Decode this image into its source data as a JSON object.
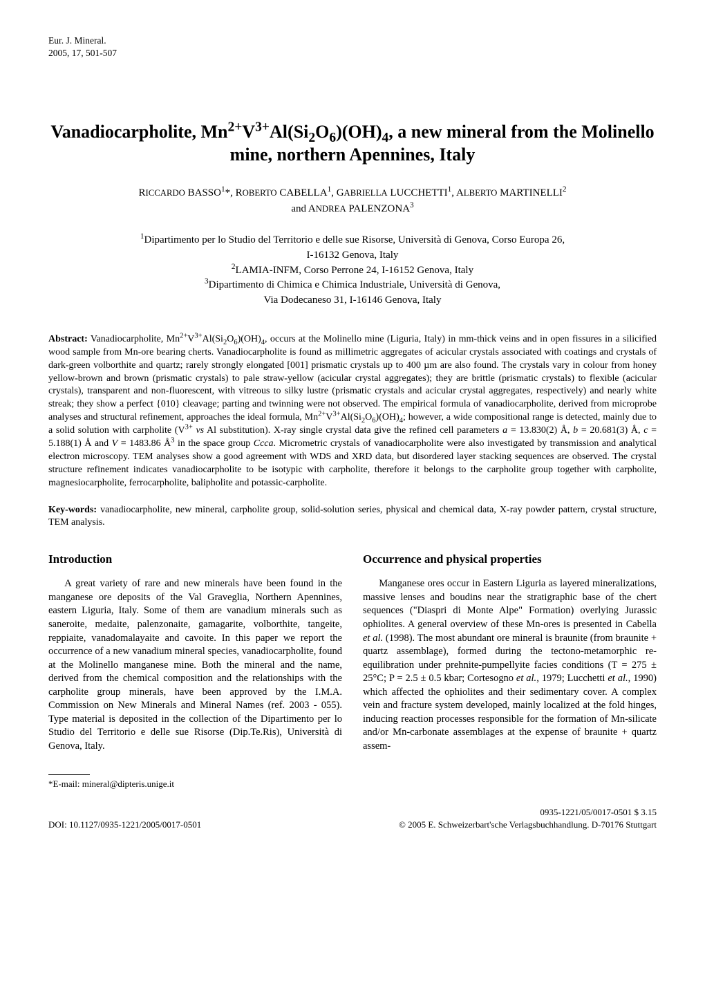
{
  "journal": {
    "name": "Eur. J. Mineral.",
    "citation": "2005, 17, 501-507"
  },
  "title_html": "Vanadiocarpholite, Mn<span class=\"sup\">2+</span>V<span class=\"sup\">3+</span>Al(Si<span class=\"sub\">2</span>O<span class=\"sub\">6</span>)(OH)<span class=\"sub\">4</span>, a new mineral from the Molinello mine, northern Apennines, Italy",
  "authors_html": "R<span style=\"font-size:0.85em\">ICCARDO</span> BASSO<span class=\"sup\">1</span>*, R<span style=\"font-size:0.85em\">OBERTO</span> CABELLA<span class=\"sup\">1</span>, G<span style=\"font-size:0.85em\">ABRIELLA</span> LUCCHETTI<span class=\"sup\">1</span>, A<span style=\"font-size:0.85em\">LBERTO</span> MARTINELLI<span class=\"sup\">2</span><br>and A<span style=\"font-size:0.85em\">NDREA</span> PALENZONA<span class=\"sup\">3</span>",
  "affiliations_html": "<span class=\"sup\">1</span>Dipartimento per lo Studio del Territorio e delle sue Risorse, Università di Genova, Corso Europa 26,<br>I-16132 Genova, Italy<br><span class=\"sup\">2</span>LAMIA-INFM, Corso Perrone 24, I-16152 Genova, Italy<br><span class=\"sup\">3</span>Dipartimento di Chimica e Chimica Industriale, Università di Genova,<br>Via Dodecaneso 31, I-16146 Genova, Italy",
  "abstract": {
    "label": "Abstract:",
    "text_html": "Vanadiocarpholite, Mn<span class=\"sup\">2+</span>V<span class=\"sup\">3+</span>Al(Si<span class=\"sub\">2</span>O<span class=\"sub\">6</span>)(OH)<span class=\"sub\">4</span>, occurs at the Molinello mine (Liguria, Italy) in mm-thick veins and in open fissures in a silicified wood sample from Mn-ore bearing cherts. Vanadiocarpholite is found as millimetric aggregates of acicular crystals associated with coatings and crystals of dark-green volborthite and quartz; rarely strongly elongated [001] prismatic crystals up to 400 µm are also found. The crystals vary in colour from honey yellow-brown and brown (prismatic crystals) to pale straw-yellow (acicular crystal aggregates); they are brittle (prismatic crystals) to flexible (acicular crystals), transparent and non-fluorescent, with vitreous to silky lustre (prismatic crystals and acicular crystal aggregates, respectively) and nearly white streak; they show a perfect {010} cleavage; parting and twinning were not observed. The empirical formula of vanadiocarpholite, derived from microprobe analyses and structural refinement, approaches the ideal formula, Mn<span class=\"sup\">2+</span>V<span class=\"sup\">3+</span>Al(Si<span class=\"sub\">2</span>O<span class=\"sub\">6</span>)(OH)<span class=\"sub\">4</span>; however, a wide compositional range is detected, mainly due to a solid solution with carpholite (V<span class=\"sup\">3+</span> <span class=\"ital\">vs</span> Al substitution). X-ray single crystal data give the refined cell parameters <span class=\"ital\">a</span> = 13.830(2) Å, <span class=\"ital\">b</span> = 20.681(3) Å, <span class=\"ital\">c</span> = 5.188(1) Å and <span class=\"ital\">V</span> = 1483.86 Å<span class=\"sup\">3</span> in the space group <span class=\"ital\">Ccca</span>. Micrometric crystals of vanadiocarpholite were also investigated by transmission and analytical electron microscopy. TEM analyses show a good agreement with WDS and XRD data, but disordered layer stacking sequences are observed. The crystal structure refinement indicates vanadiocarpholite to be isotypic with carpholite, therefore it belongs to the carpholite group together with carpholite, magnesiocarpholite, ferrocarpholite, balipholite and potassic-carpholite."
  },
  "keywords": {
    "label": "Key-words:",
    "text": "vanadiocarpholite, new mineral, carpholite group, solid-solution series, physical and chemical data, X-ray powder pattern, crystal structure, TEM analysis."
  },
  "sections": {
    "left": {
      "heading": "Introduction",
      "body_html": "A great variety of rare and new minerals have been found in the manganese ore deposits of the Val Graveglia, Northern Apennines, eastern Liguria, Italy. Some of them are vanadium minerals such as saneroite, medaite, palenzonaite, gamagarite, volborthite, tangeite, reppiaite, vanadomalayaite and cavoite. In this paper we report the occurrence of a new vanadium mineral species, vanadiocarpholite, found at the Molinello manganese mine. Both the mineral and the name, derived from the chemical composition and the relationships with the carpholite group minerals, have been approved by the I.M.A. Commission on New Minerals and Mineral Names (ref. 2003 - 055). Type material is deposited in the collection of the Dipartimento per lo Studio del Territorio e delle sue Risorse (Dip.Te.Ris), Università di Genova, Italy."
    },
    "right": {
      "heading": "Occurrence and physical properties",
      "body_html": "Manganese ores occur in Eastern Liguria as layered mineralizations, massive lenses and boudins near the stratigraphic base of the chert sequences (\"Diaspri di Monte Alpe\" Formation) overlying Jurassic ophiolites. A general overview of these Mn-ores is presented in Cabella <span class=\"ital\">et al.</span> (1998). The most abundant ore mineral is braunite (from braunite + quartz assemblage), formed during the tectono-metamorphic re-equilibration under prehnite-pumpellyite facies conditions (T = 275 ± 25°C; P = 2.5 ± 0.5 kbar; Cortesogno <span class=\"ital\">et al.</span>, 1979; Lucchetti <span class=\"ital\">et al.</span>, 1990) which affected the ophiolites and their sedimentary cover. A complex vein and fracture system developed, mainly localized at the fold hinges, inducing reaction processes responsible for the formation of Mn-silicate and/or Mn-carbonate assemblages at the expense of braunite + quartz assem-"
    }
  },
  "footnote": "*E-mail: mineral@dipteris.unige.it",
  "footer": {
    "doi": "DOI: 10.1127/0935-1221/2005/0017-0501",
    "issn_price": "0935-1221/05/0017-0501 $ 3.15",
    "copyright": "© 2005 E. Schweizerbart'sche Verlagsbuchhandlung. D-70176 Stuttgart"
  }
}
